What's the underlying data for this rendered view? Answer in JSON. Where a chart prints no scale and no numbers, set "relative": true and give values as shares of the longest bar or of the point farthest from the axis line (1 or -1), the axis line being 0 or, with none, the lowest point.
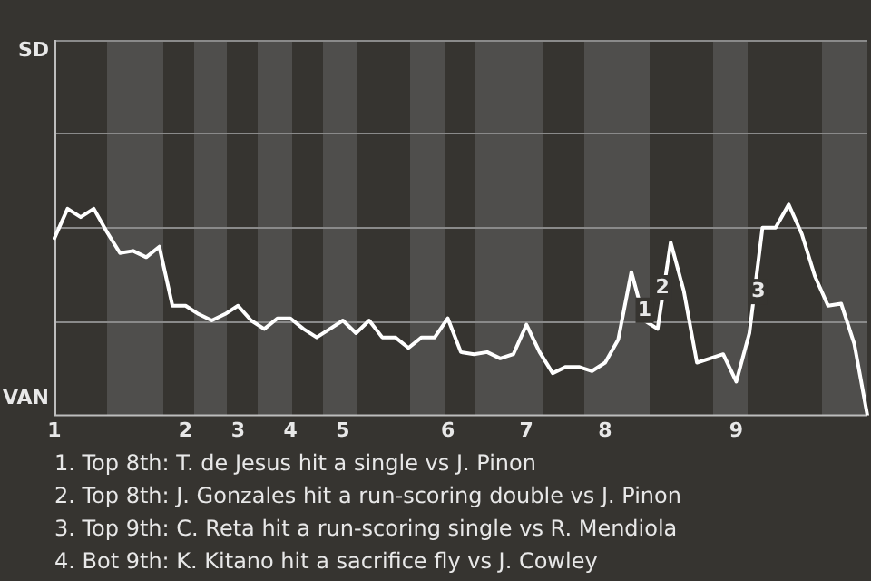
{
  "chart_data": {
    "type": "line",
    "relative": true,
    "marker": "none",
    "ref_lines": [
      {
        "axis": "y",
        "value": 0.45,
        "color": "#8a8a8a"
      },
      {
        "axis": "y",
        "value": 0.89,
        "color": "#8a8a8a"
      },
      {
        "axis": "y",
        "value": 1.34,
        "color": "#8a8a8a"
      }
    ],
    "line_style": "solid",
    "categories": [
      "1",
      null,
      null,
      null,
      null,
      null,
      null,
      null,
      null,
      null,
      "2",
      null,
      null,
      null,
      "3",
      null,
      null,
      null,
      "4",
      null,
      null,
      null,
      "5",
      null,
      null,
      null,
      null,
      null,
      null,
      null,
      "6",
      null,
      null,
      null,
      null,
      null,
      "7",
      null,
      null,
      null,
      null,
      null,
      "8",
      null,
      null,
      null,
      null,
      null,
      null,
      null,
      null,
      null,
      "9",
      null,
      null,
      null,
      null,
      null,
      null,
      null,
      null,
      null,
      null
    ],
    "series": [
      {
        "color": "#ffffff",
        "values": [
          0.84,
          0.98,
          0.94,
          0.98,
          0.87,
          0.77,
          0.78,
          0.75,
          0.8,
          0.52,
          0.52,
          0.48,
          0.45,
          0.48,
          0.52,
          0.45,
          0.41,
          0.46,
          0.46,
          0.41,
          0.37,
          0.41,
          0.45,
          0.39,
          0.45,
          0.37,
          0.37,
          0.32,
          0.37,
          0.37,
          0.46,
          0.3,
          0.29,
          0.3,
          0.27,
          0.29,
          0.43,
          0.3,
          0.2,
          0.23,
          0.23,
          0.21,
          0.25,
          0.36,
          0.68,
          0.45,
          0.41,
          0.82,
          0.59,
          0.25,
          0.27,
          0.29,
          0.16,
          0.39,
          0.89,
          0.89,
          1,
          0.86,
          0.66,
          0.52,
          0.53,
          0.34,
          0
        ]
      }
    ],
    "annotations": [
      "SD",
      "VAN",
      "1",
      "2",
      "3",
      "1. Top 8th: T. de Jesus hit a single vs J. Pinon",
      "2. Top 8th: J. Gonzales hit a run-scoring double vs J. Pinon",
      "3. Top 9th: C. Reta hit a run-scoring single vs R. Mendiola",
      "4. Bot 9th: K. Kitano hit a sacrifice fly vs J. Cowley"
    ]
  }
}
